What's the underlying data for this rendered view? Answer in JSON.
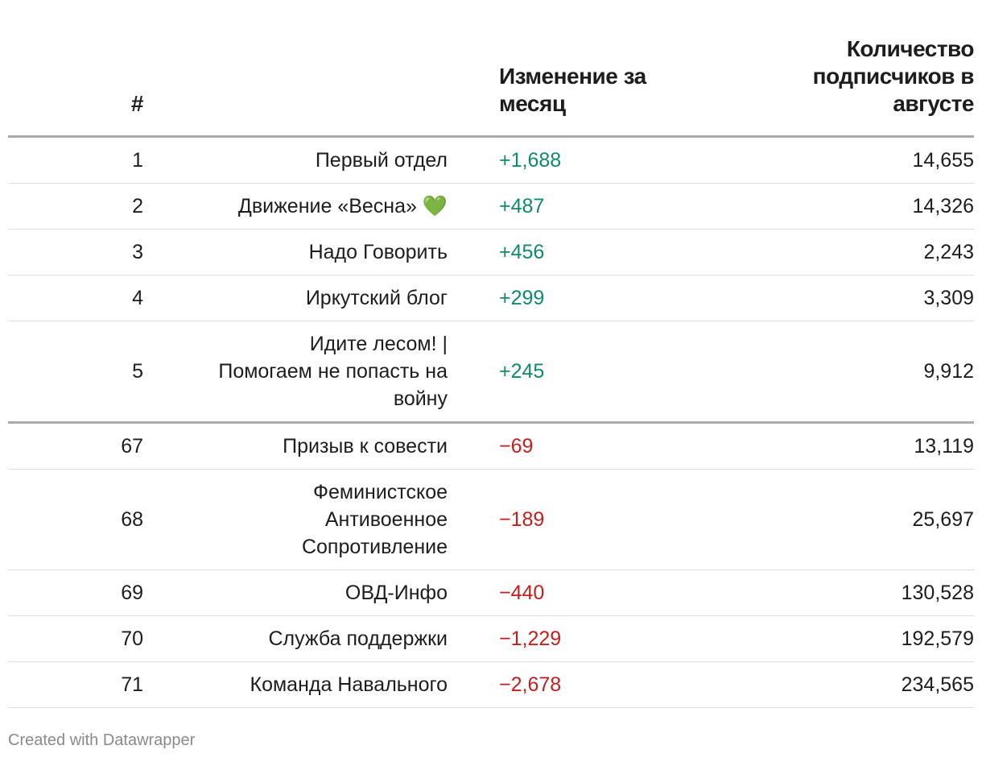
{
  "table": {
    "headers": [
      "#",
      "",
      "Изменение за месяц",
      "Количество подписчиков в августе"
    ],
    "groups": [
      [
        [
          "1",
          "Первый отдел",
          "+1,688",
          "14,655"
        ],
        [
          "2",
          "Движение «Весна» 💚",
          "+487",
          "14,326"
        ],
        [
          "3",
          "Надо Говорить",
          "+456",
          "2,243"
        ],
        [
          "4",
          "Иркутский блог",
          "+299",
          "3,309"
        ],
        [
          "5",
          "Идите лесом! | Помогаем не попасть на войну",
          "+245",
          "9,912"
        ]
      ],
      [
        [
          "67",
          "Призыв к совести",
          "−69",
          "13,119"
        ],
        [
          "68",
          "Феминистское Антивоенное Сопротивление",
          "−189",
          "25,697"
        ],
        [
          "69",
          "ОВД-Инфо",
          "−440",
          "130,528"
        ],
        [
          "70",
          "Служба поддержки",
          "−1,229",
          "192,579"
        ],
        [
          "71",
          "Команда Навального",
          "−2,678",
          "234,565"
        ]
      ]
    ],
    "positive_color": "#0e8a6e",
    "negative_color": "#c71e1d"
  },
  "footer": "Created with Datawrapper"
}
